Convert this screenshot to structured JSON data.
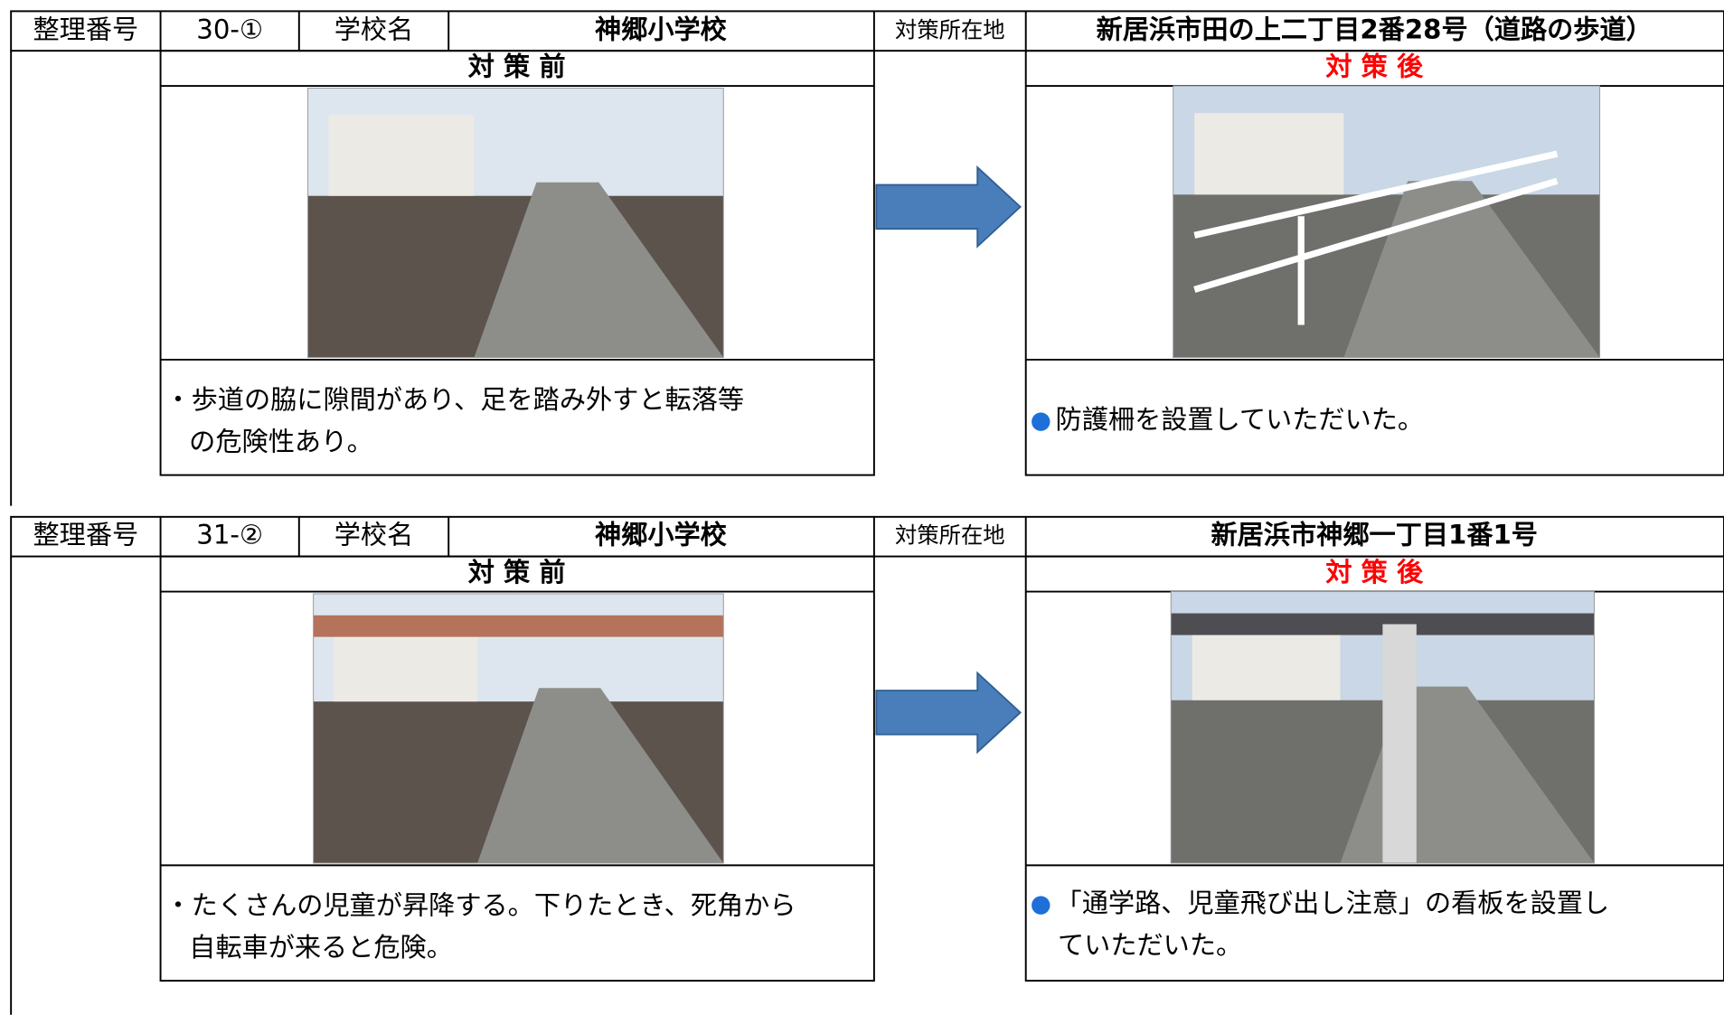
{
  "records": [
    {
      "header": {
        "number_label": "整理番号",
        "number": "30-①",
        "school_label": "学校名",
        "school": "神郷小学校",
        "location_label": "対策所在地",
        "location": "新居浜市田の上二丁目2番28号（道路の歩道）"
      },
      "before": {
        "label": "対 策 前",
        "description": [
          "・歩道の脇に隙間があり、足を踏み外すと転落等",
          "の危険性あり。"
        ]
      },
      "after": {
        "label": "対 策 後",
        "bullet": "●",
        "description": [
          "防護柵を設置していただいた。"
        ]
      }
    },
    {
      "header": {
        "number_label": "整理番号",
        "number": "31-②",
        "school_label": "学校名",
        "school": "神郷小学校",
        "location_label": "対策所在地",
        "location": "新居浜市神郷一丁目1番1号"
      },
      "before": {
        "label": "対 策 前",
        "description": [
          "・たくさんの児童が昇降する。下りたとき、死角から",
          "自転車が来ると危険。"
        ]
      },
      "after": {
        "label": "対 策 後",
        "bullet": "●",
        "description": [
          "「通学路、児童飛び出し注意」の看板を設置し",
          "ていただいた。"
        ]
      }
    }
  ]
}
